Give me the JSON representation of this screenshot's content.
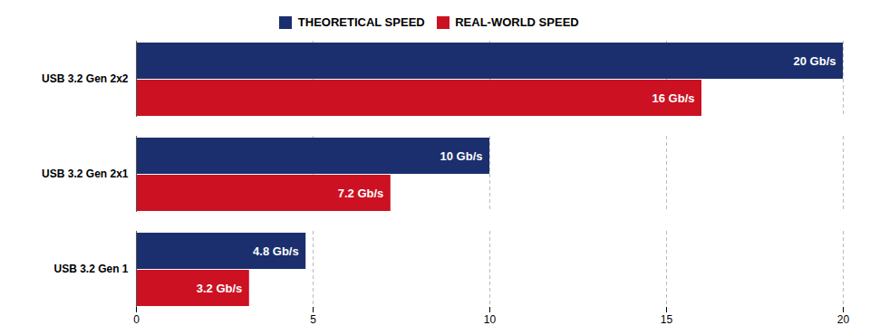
{
  "chart_data": {
    "type": "bar",
    "orientation": "horizontal",
    "categories": [
      "USB 3.2 Gen 2x2",
      "USB 3.2 Gen 2x1",
      "USB 3.2 Gen 1"
    ],
    "series": [
      {
        "name": "THEORETICAL SPEED",
        "color": "#1b2f6e",
        "values": [
          20,
          10,
          4.8
        ],
        "value_labels": [
          "20 Gb/s",
          "10 Gb/s",
          "4.8 Gb/s"
        ]
      },
      {
        "name": "REAL-WORLD SPEED",
        "color": "#cc1122",
        "values": [
          16,
          7.2,
          3.2
        ],
        "value_labels": [
          "16 Gb/s",
          "7.2 Gb/s",
          "3.2 Gb/s"
        ]
      }
    ],
    "xlim": [
      0,
      20
    ],
    "xticks": [
      0,
      5,
      10,
      15,
      20
    ],
    "grid": true,
    "legend": "top",
    "data_labels": true
  }
}
